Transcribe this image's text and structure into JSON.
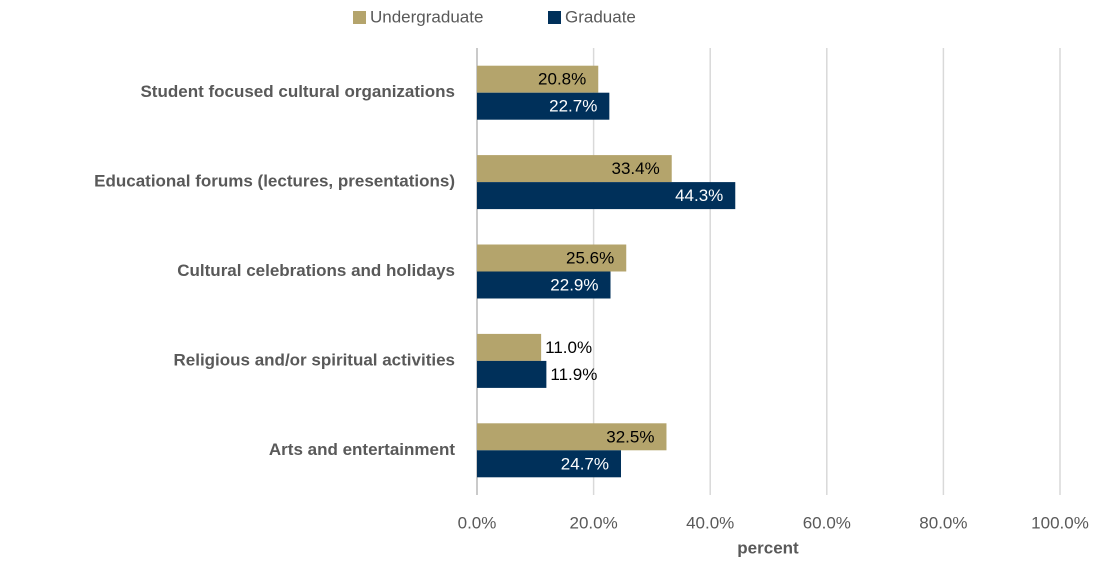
{
  "chart_data": {
    "type": "bar",
    "orientation": "horizontal",
    "categories": [
      "Student focused cultural organizations",
      "Educational forums (lectures, presentations)",
      "Cultural celebrations and holidays",
      "Religious and/or spiritual activities",
      "Arts and entertainment"
    ],
    "series": [
      {
        "name": "Undergraduate",
        "color": "#b4a46c",
        "values": [
          20.8,
          33.4,
          25.6,
          11.0,
          32.5
        ],
        "value_labels": [
          "20.8%",
          "33.4%",
          "25.6%",
          "11.0%",
          "32.5%"
        ]
      },
      {
        "name": "Graduate",
        "color": "#00305a",
        "values": [
          22.7,
          44.3,
          22.9,
          11.9,
          24.7
        ],
        "value_labels": [
          "22.7%",
          "44.3%",
          "22.9%",
          "11.9%",
          "24.7%"
        ]
      }
    ],
    "xlabel": "percent",
    "xlim": [
      0,
      100
    ],
    "xticks": [
      {
        "value": 0,
        "label": "0.0%"
      },
      {
        "value": 20,
        "label": "20.0%"
      },
      {
        "value": 40,
        "label": "40.0%"
      },
      {
        "value": 60,
        "label": "60.0%"
      },
      {
        "value": 80,
        "label": "80.0%"
      },
      {
        "value": 100,
        "label": "100.0%"
      }
    ],
    "grid": true,
    "legend": "top"
  }
}
